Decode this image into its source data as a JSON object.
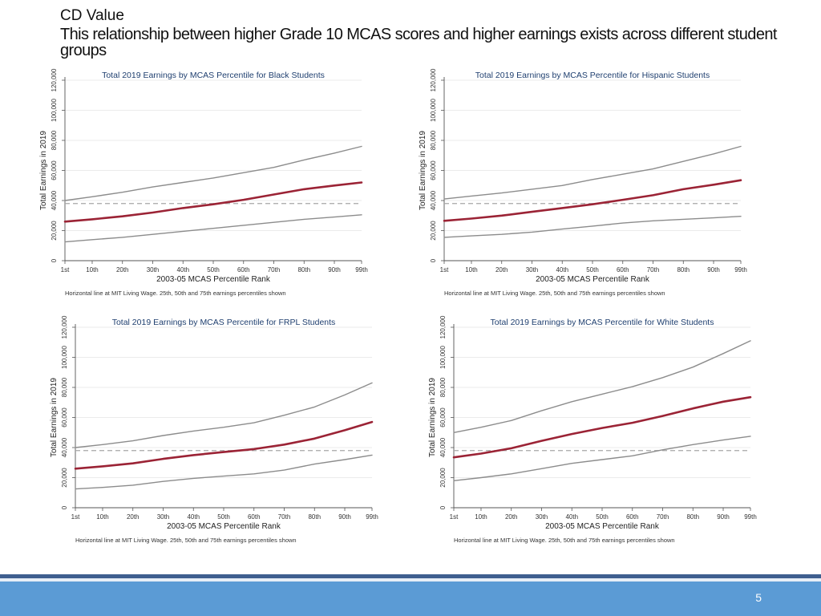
{
  "slide": {
    "subtitle": "CD Value",
    "title": "This relationship between higher Grade 10 MCAS scores and higher earnings exists across different student groups",
    "page_number": "5"
  },
  "colors": {
    "median": "#9b2335",
    "percentile_band": "#8c8c8c",
    "living_wage": "#a6a6a6",
    "footer_bar": "#5b9bd5",
    "footer_stripe": "#3f5f8f"
  },
  "chart_data": [
    {
      "type": "line",
      "title": "Total 2019 Earnings by MCAS Percentile for Black Students",
      "xlabel": "2003-05 MCAS Percentile Rank",
      "ylabel": "Total Earnings in 2019",
      "note": "Horizontal line at MIT Living Wage. 25th, 50th and 75th earnings percentiles shown",
      "x_ticks": [
        "1st",
        "10th",
        "20th",
        "30th",
        "40th",
        "50th",
        "60th",
        "70th",
        "80th",
        "90th",
        "99th"
      ],
      "y_ticks": [
        "0",
        "20,000",
        "40,000",
        "60,000",
        "80,000",
        "100,000",
        "120,000"
      ],
      "ylim": [
        0,
        120000
      ],
      "grid": true,
      "living_wage": 38000,
      "x": [
        1,
        10,
        20,
        30,
        40,
        50,
        60,
        70,
        80,
        90,
        99
      ],
      "series": [
        {
          "role": "p75",
          "values": [
            40000,
            42500,
            45500,
            49000,
            52000,
            55000,
            58500,
            62000,
            67000,
            71500,
            76000
          ]
        },
        {
          "role": "p50",
          "values": [
            26000,
            27500,
            29500,
            32000,
            35000,
            37500,
            40500,
            44000,
            47500,
            50000,
            52000
          ]
        },
        {
          "role": "p25",
          "values": [
            12500,
            14000,
            15500,
            17500,
            19500,
            21500,
            23500,
            25500,
            27500,
            29000,
            30500
          ]
        }
      ]
    },
    {
      "type": "line",
      "title": "Total 2019 Earnings by MCAS Percentile for Hispanic Students",
      "xlabel": "2003-05 MCAS Percentile Rank",
      "ylabel": "Total Earnings in 2019",
      "note": "Horizontal line at MIT Living Wage. 25th, 50th and 75th earnings percentiles shown",
      "x_ticks": [
        "1st",
        "10th",
        "20th",
        "30th",
        "40th",
        "50th",
        "60th",
        "70th",
        "80th",
        "90th",
        "99th"
      ],
      "y_ticks": [
        "0",
        "20,000",
        "40,000",
        "60,000",
        "80,000",
        "100,000",
        "120,000"
      ],
      "ylim": [
        0,
        120000
      ],
      "grid": true,
      "living_wage": 38000,
      "x": [
        1,
        10,
        20,
        30,
        40,
        50,
        60,
        70,
        80,
        90,
        99
      ],
      "series": [
        {
          "role": "p75",
          "values": [
            41000,
            43000,
            45000,
            47500,
            50000,
            54000,
            57500,
            61000,
            66000,
            71000,
            76000
          ]
        },
        {
          "role": "p50",
          "values": [
            26500,
            28000,
            30000,
            32500,
            35000,
            37500,
            40500,
            43500,
            47500,
            50500,
            53500
          ]
        },
        {
          "role": "p25",
          "values": [
            15500,
            16500,
            17500,
            19000,
            21000,
            23000,
            25000,
            26500,
            27500,
            28500,
            29500
          ]
        }
      ]
    },
    {
      "type": "line",
      "title": "Total 2019 Earnings by MCAS Percentile for FRPL Students",
      "xlabel": "2003-05 MCAS Percentile Rank",
      "ylabel": "Total Earnings in 2019",
      "note": "Horizontal line at MIT Living Wage. 25th, 50th and 75th earnings percentiles shown",
      "x_ticks": [
        "1st",
        "10th",
        "20th",
        "30th",
        "40th",
        "50th",
        "60th",
        "70th",
        "80th",
        "90th",
        "99th"
      ],
      "y_ticks": [
        "0",
        "20,000",
        "40,000",
        "60,000",
        "80,000",
        "100,000",
        "120,000"
      ],
      "ylim": [
        0,
        120000
      ],
      "grid": true,
      "living_wage": 38000,
      "x": [
        1,
        10,
        20,
        30,
        40,
        50,
        60,
        70,
        80,
        90,
        99
      ],
      "series": [
        {
          "role": "p75",
          "values": [
            40000,
            42000,
            44500,
            48000,
            51000,
            53500,
            56500,
            61500,
            67000,
            75000,
            83000
          ]
        },
        {
          "role": "p50",
          "values": [
            26000,
            27500,
            29500,
            32500,
            35000,
            37000,
            39000,
            42000,
            46000,
            51500,
            57000
          ]
        },
        {
          "role": "p25",
          "values": [
            12500,
            13500,
            15000,
            17500,
            19500,
            21000,
            22500,
            25000,
            29000,
            32000,
            35000
          ]
        }
      ]
    },
    {
      "type": "line",
      "title": "Total 2019 Earnings by MCAS Percentile for White Students",
      "xlabel": "2003-05 MCAS Percentile Rank",
      "ylabel": "Total Earnings in 2019",
      "note": "Horizontal line at MIT Living Wage. 25th, 50th and 75th earnings percentiles shown",
      "x_ticks": [
        "1st",
        "10th",
        "20th",
        "30th",
        "40th",
        "50th",
        "60th",
        "70th",
        "80th",
        "90th",
        "99th"
      ],
      "y_ticks": [
        "0",
        "20,000",
        "40,000",
        "60,000",
        "80,000",
        "100,000",
        "120,000"
      ],
      "ylim": [
        0,
        120000
      ],
      "grid": true,
      "living_wage": 38000,
      "x": [
        1,
        10,
        20,
        30,
        40,
        50,
        60,
        70,
        80,
        90,
        99
      ],
      "series": [
        {
          "role": "p75",
          "values": [
            50000,
            53500,
            58000,
            64500,
            70500,
            75500,
            80500,
            86500,
            93500,
            102500,
            111000
          ]
        },
        {
          "role": "p50",
          "values": [
            33500,
            36000,
            39500,
            44500,
            49000,
            53000,
            56500,
            61000,
            66000,
            70500,
            73500
          ]
        },
        {
          "role": "p25",
          "values": [
            18000,
            20000,
            22500,
            26000,
            29500,
            32000,
            34500,
            38500,
            42000,
            45000,
            47500
          ]
        }
      ]
    }
  ]
}
